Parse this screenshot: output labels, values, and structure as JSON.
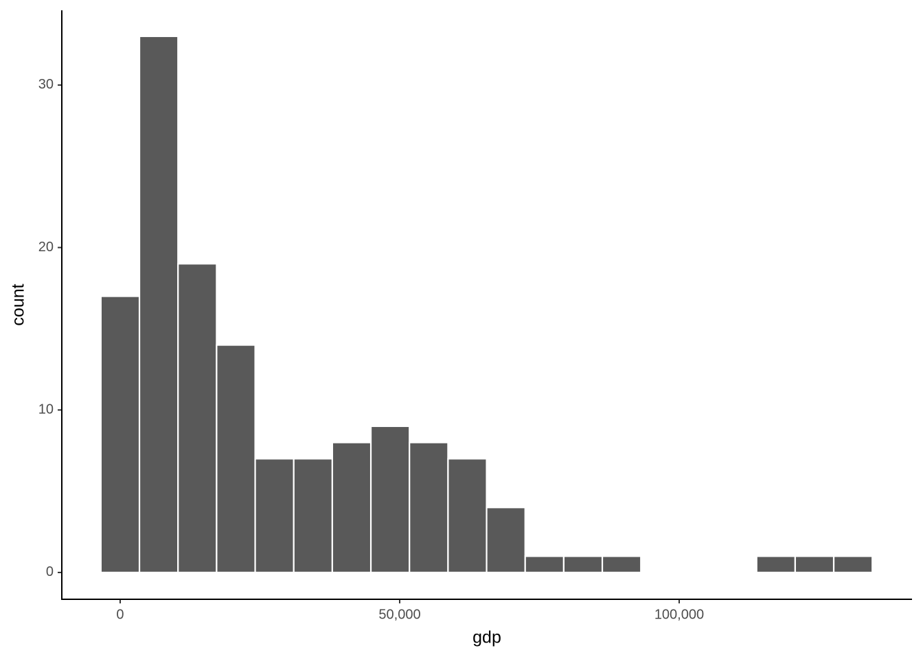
{
  "chart_data": {
    "type": "histogram",
    "x_label": "gdp",
    "y_label": "count",
    "bins": [
      -3450,
      3450,
      10350,
      17250,
      24150,
      31050,
      37950,
      44850,
      51750,
      58650,
      65550,
      72450,
      79350,
      86250,
      93150,
      100050,
      106950,
      113850,
      120750,
      127650,
      134550
    ],
    "values": [
      17,
      33,
      19,
      14,
      7,
      7,
      8,
      9,
      8,
      7,
      4,
      1,
      1,
      1,
      0,
      0,
      0,
      1,
      1,
      1
    ],
    "color": "#595959",
    "xlim": [
      -10440,
      141650
    ],
    "ylim": [
      -1.65,
      34.6
    ],
    "xticks": [
      0,
      {
        "value": 50000,
        "label": "50,000"
      },
      {
        "value": 100000,
        "label": "100,000"
      }
    ],
    "yticks": [
      0,
      10,
      20,
      30
    ],
    "grid": false
  }
}
